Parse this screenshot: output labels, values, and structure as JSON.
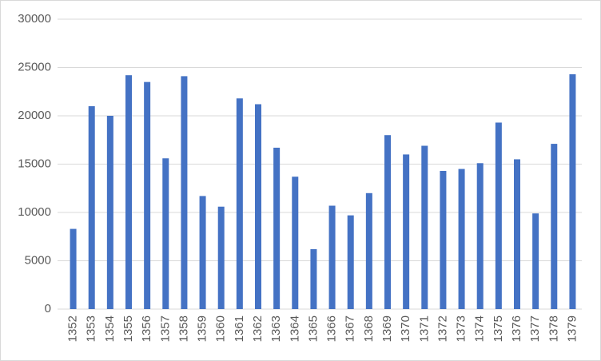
{
  "chart_data": {
    "type": "bar",
    "categories": [
      "1352",
      "1353",
      "1354",
      "1355",
      "1356",
      "1357",
      "1358",
      "1359",
      "1360",
      "1361",
      "1362",
      "1363",
      "1364",
      "1365",
      "1366",
      "1367",
      "1368",
      "1369",
      "1370",
      "1371",
      "1372",
      "1373",
      "1374",
      "1375",
      "1376",
      "1377",
      "1378",
      "1379"
    ],
    "values": [
      8300,
      21000,
      20000,
      24200,
      23500,
      15600,
      24100,
      11700,
      10600,
      21800,
      21200,
      16700,
      13700,
      6200,
      10700,
      9700,
      12000,
      18000,
      16000,
      16900,
      14300,
      14500,
      15100,
      19300,
      15500,
      9900,
      17100,
      24300
    ],
    "color": "#4472c4",
    "ylim": [
      0,
      30000
    ],
    "yticks": [
      0,
      5000,
      10000,
      15000,
      20000,
      25000,
      30000
    ],
    "grid": true
  }
}
